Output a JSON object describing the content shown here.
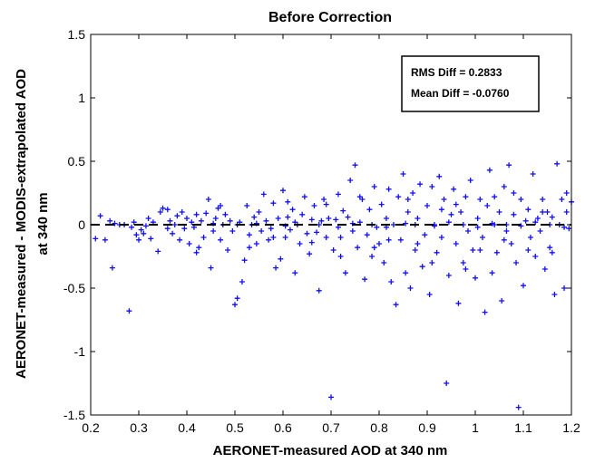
{
  "chart_data": {
    "type": "scatter",
    "title": "Before Correction",
    "xlabel": "AERONET-measured AOD at 340 nm",
    "ylabel_line1": "AERONET-measured - MODIS-extrapolated AOD",
    "ylabel_line2": "at 340 nm",
    "xlim": [
      0.2,
      1.2
    ],
    "ylim": [
      -1.5,
      1.5
    ],
    "x_ticks": [
      "0.2",
      "0.3",
      "0.4",
      "0.5",
      "0.6",
      "0.7",
      "0.8",
      "0.9",
      "1",
      "1.1",
      "1.2"
    ],
    "y_ticks": [
      "-1.5",
      "-1",
      "-0.5",
      "0",
      "0.5",
      "1",
      "1.5"
    ],
    "grid": false,
    "marker": "+",
    "marker_color": "#1010ee",
    "reference_line": {
      "y": 0,
      "style": "dashed",
      "color": "#000000"
    },
    "annotation": {
      "line1": "RMS Diff = 0.2833",
      "line2": "Mean Diff = -0.0760",
      "position": "top-right"
    },
    "series": [
      {
        "points": [
          [
            0.21,
            -0.11
          ],
          [
            0.22,
            0.07
          ],
          [
            0.23,
            -0.12
          ],
          [
            0.24,
            0.03
          ],
          [
            0.245,
            -0.34
          ],
          [
            0.25,
            0.01
          ],
          [
            0.26,
            0.0
          ],
          [
            0.28,
            -0.68
          ],
          [
            0.285,
            -0.02
          ],
          [
            0.29,
            0.02
          ],
          [
            0.295,
            -0.08
          ],
          [
            0.3,
            -0.12
          ],
          [
            0.305,
            -0.04
          ],
          [
            0.31,
            -0.07
          ],
          [
            0.32,
            0.05
          ],
          [
            0.325,
            -0.11
          ],
          [
            0.33,
            0.02
          ],
          [
            0.34,
            -0.21
          ],
          [
            0.345,
            0.1
          ],
          [
            0.35,
            0.13
          ],
          [
            0.36,
            -0.03
          ],
          [
            0.365,
            0.03
          ],
          [
            0.37,
            -0.07
          ],
          [
            0.38,
            0.07
          ],
          [
            0.385,
            -0.12
          ],
          [
            0.39,
            0.1
          ],
          [
            0.395,
            -0.03
          ],
          [
            0.4,
            0.05
          ],
          [
            0.405,
            -0.15
          ],
          [
            0.41,
            0.02
          ],
          [
            0.42,
            0.08
          ],
          [
            0.425,
            -0.18
          ],
          [
            0.43,
            0.03
          ],
          [
            0.435,
            -0.1
          ],
          [
            0.44,
            0.09
          ],
          [
            0.445,
            0.2
          ],
          [
            0.45,
            -0.34
          ],
          [
            0.455,
            -0.05
          ],
          [
            0.46,
            0.05
          ],
          [
            0.465,
            0.13
          ],
          [
            0.47,
            -0.12
          ],
          [
            0.475,
            0.0
          ],
          [
            0.48,
            0.08
          ],
          [
            0.485,
            -0.2
          ],
          [
            0.49,
            0.03
          ],
          [
            0.495,
            -0.05
          ],
          [
            0.5,
            -0.63
          ],
          [
            0.505,
            -0.58
          ],
          [
            0.51,
            0.02
          ],
          [
            0.515,
            -0.45
          ],
          [
            0.52,
            -0.28
          ],
          [
            0.525,
            0.15
          ],
          [
            0.53,
            -0.08
          ],
          [
            0.535,
            0.0
          ],
          [
            0.54,
            0.06
          ],
          [
            0.545,
            -0.15
          ],
          [
            0.55,
            0.1
          ],
          [
            0.555,
            -0.05
          ],
          [
            0.56,
            0.24
          ],
          [
            0.565,
            0.03
          ],
          [
            0.57,
            -0.12
          ],
          [
            0.575,
            -0.03
          ],
          [
            0.58,
            0.17
          ],
          [
            0.585,
            -0.34
          ],
          [
            0.59,
            0.05
          ],
          [
            0.595,
            -0.27
          ],
          [
            0.6,
            0.27
          ],
          [
            0.605,
            -0.1
          ],
          [
            0.61,
            0.06
          ],
          [
            0.615,
            -0.04
          ],
          [
            0.62,
            0.12
          ],
          [
            0.625,
            -0.38
          ],
          [
            0.63,
            0.0
          ],
          [
            0.635,
            -0.15
          ],
          [
            0.64,
            0.08
          ],
          [
            0.645,
            0.22
          ],
          [
            0.65,
            -0.07
          ],
          [
            0.655,
            -0.23
          ],
          [
            0.66,
            0.04
          ],
          [
            0.665,
            0.15
          ],
          [
            0.67,
            -0.06
          ],
          [
            0.675,
            -0.52
          ],
          [
            0.68,
            0.03
          ],
          [
            0.685,
            0.2
          ],
          [
            0.69,
            -0.1
          ],
          [
            0.695,
            0.05
          ],
          [
            0.7,
            -1.36
          ],
          [
            0.705,
            -0.2
          ],
          [
            0.71,
            0.04
          ],
          [
            0.715,
            0.24
          ],
          [
            0.72,
            -0.1
          ],
          [
            0.725,
            0.11
          ],
          [
            0.73,
            -0.38
          ],
          [
            0.735,
            0.06
          ],
          [
            0.74,
            0.35
          ],
          [
            0.745,
            -0.05
          ],
          [
            0.75,
            0.47
          ],
          [
            0.755,
            -0.18
          ],
          [
            0.76,
            0.02
          ],
          [
            0.765,
            0.2
          ],
          [
            0.77,
            -0.43
          ],
          [
            0.775,
            -0.08
          ],
          [
            0.78,
            0.12
          ],
          [
            0.785,
            -0.25
          ],
          [
            0.79,
            0.3
          ],
          [
            0.795,
            -0.02
          ],
          [
            0.8,
            -0.15
          ],
          [
            0.805,
            0.16
          ],
          [
            0.81,
            -0.3
          ],
          [
            0.815,
            0.05
          ],
          [
            0.82,
            0.28
          ],
          [
            0.825,
            -0.45
          ],
          [
            0.83,
            0.0
          ],
          [
            0.835,
            -0.63
          ],
          [
            0.84,
            0.22
          ],
          [
            0.845,
            -0.12
          ],
          [
            0.85,
            0.4
          ],
          [
            0.855,
            -0.38
          ],
          [
            0.86,
            0.1
          ],
          [
            0.865,
            -0.5
          ],
          [
            0.87,
            0.25
          ],
          [
            0.875,
            -0.2
          ],
          [
            0.88,
            0.05
          ],
          [
            0.885,
            0.32
          ],
          [
            0.89,
            -0.33
          ],
          [
            0.895,
            -0.08
          ],
          [
            0.9,
            0.15
          ],
          [
            0.905,
            -0.55
          ],
          [
            0.91,
            0.3
          ],
          [
            0.915,
            0.0
          ],
          [
            0.92,
            -0.22
          ],
          [
            0.925,
            0.38
          ],
          [
            0.93,
            -0.1
          ],
          [
            0.935,
            0.2
          ],
          [
            0.94,
            -1.25
          ],
          [
            0.945,
            -0.4
          ],
          [
            0.95,
            0.08
          ],
          [
            0.955,
            0.28
          ],
          [
            0.96,
            -0.15
          ],
          [
            0.965,
            -0.62
          ],
          [
            0.97,
            0.1
          ],
          [
            0.975,
            -0.3
          ],
          [
            0.98,
            0.22
          ],
          [
            0.985,
            -0.05
          ],
          [
            0.99,
            0.35
          ],
          [
            0.995,
            -0.2
          ],
          [
            1.0,
            -0.42
          ],
          [
            1.005,
            0.05
          ],
          [
            1.01,
            0.2
          ],
          [
            1.015,
            -0.1
          ],
          [
            1.02,
            -0.69
          ],
          [
            1.025,
            0.15
          ],
          [
            1.03,
            0.43
          ],
          [
            1.035,
            -0.38
          ],
          [
            1.04,
            0.0
          ],
          [
            1.045,
            -0.22
          ],
          [
            1.05,
            0.1
          ],
          [
            1.055,
            -0.6
          ],
          [
            1.06,
            0.3
          ],
          [
            1.065,
            -0.05
          ],
          [
            1.07,
            0.47
          ],
          [
            1.075,
            -0.15
          ],
          [
            1.08,
            0.08
          ],
          [
            1.085,
            -0.3
          ],
          [
            1.09,
            -1.44
          ],
          [
            1.095,
            0.2
          ],
          [
            1.1,
            -0.48
          ],
          [
            1.105,
            0.03
          ],
          [
            1.11,
            0.12
          ],
          [
            1.115,
            -0.1
          ],
          [
            1.12,
            0.4
          ],
          [
            1.125,
            -0.25
          ],
          [
            1.13,
            0.05
          ],
          [
            1.135,
            -0.05
          ],
          [
            1.14,
            0.2
          ],
          [
            1.145,
            -0.35
          ],
          [
            1.15,
            0.1
          ],
          [
            1.155,
            -0.18
          ],
          [
            1.16,
            0.06
          ],
          [
            1.165,
            -0.55
          ],
          [
            1.17,
            0.48
          ],
          [
            1.175,
            0.0
          ],
          [
            1.18,
            0.2
          ],
          [
            1.185,
            -0.5
          ],
          [
            1.19,
            0.25
          ],
          [
            1.195,
            -0.03
          ],
          [
            1.2,
            0.18
          ],
          [
            0.27,
            0.0
          ],
          [
            0.315,
            -0.01
          ],
          [
            0.375,
            0.0
          ],
          [
            0.415,
            -0.02
          ],
          [
            0.455,
            0.01
          ],
          [
            0.505,
            0.0
          ],
          [
            0.545,
            0.01
          ],
          [
            0.605,
            -0.01
          ],
          [
            0.625,
            0.02
          ],
          [
            0.675,
            0.0
          ],
          [
            0.715,
            -0.02
          ],
          [
            0.745,
            0.01
          ],
          [
            0.785,
            0.0
          ],
          [
            0.815,
            -0.02
          ],
          [
            0.855,
            0.01
          ],
          [
            0.875,
            0.0
          ],
          [
            0.915,
            -0.01
          ],
          [
            0.945,
            0.02
          ],
          [
            0.975,
            0.0
          ],
          [
            1.005,
            -0.02
          ],
          [
            1.035,
            0.01
          ],
          [
            1.065,
            0.0
          ],
          [
            1.095,
            -0.01
          ],
          [
            1.125,
            0.02
          ],
          [
            1.155,
            0.0
          ],
          [
            1.185,
            -0.02
          ],
          [
            0.36,
            0.12
          ],
          [
            0.42,
            -0.22
          ],
          [
            0.47,
            0.15
          ],
          [
            0.53,
            -0.18
          ],
          [
            0.58,
            -0.1
          ],
          [
            0.61,
            0.18
          ],
          [
            0.66,
            -0.14
          ],
          [
            0.69,
            0.16
          ],
          [
            0.72,
            -0.25
          ],
          [
            0.76,
            0.22
          ],
          [
            0.79,
            -0.18
          ],
          [
            0.82,
            -0.12
          ],
          [
            0.86,
            0.2
          ],
          [
            0.88,
            -0.15
          ],
          [
            0.91,
            -0.3
          ],
          [
            0.93,
            0.12
          ],
          [
            0.96,
            0.16
          ],
          [
            0.98,
            -0.35
          ],
          [
            1.01,
            -0.2
          ],
          [
            1.04,
            0.22
          ],
          [
            1.06,
            -0.12
          ],
          [
            1.08,
            0.25
          ],
          [
            1.11,
            -0.2
          ],
          [
            1.14,
            0.1
          ],
          [
            1.16,
            -0.22
          ],
          [
            1.19,
            0.1
          ]
        ]
      }
    ]
  }
}
